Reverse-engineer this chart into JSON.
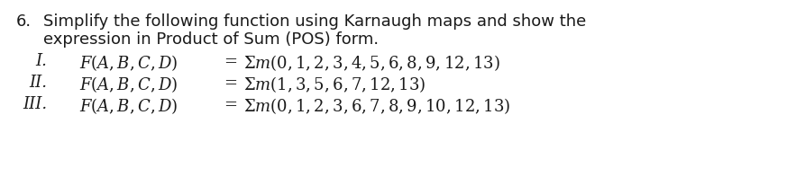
{
  "background_color": "#ffffff",
  "text_color": "#1a1a1a",
  "number": "6.",
  "line1": "Simplify the following function using Karnaugh maps and show the",
  "line2": "expression in Product of Sum (POS) form.",
  "roman_I": "I.",
  "roman_II": "II.",
  "roman_III": "III.",
  "minterms_I": "0,1,2,3,4,5,6,8,9,12,13",
  "minterms_II": "1,3,5,6,7,12,13",
  "minterms_III": "0,1,2,3,6,7,8,9,10,12,13",
  "fontsize_header": 13.0,
  "fontsize_body": 13.0,
  "fig_width": 8.83,
  "fig_height": 1.97,
  "dpi": 100
}
